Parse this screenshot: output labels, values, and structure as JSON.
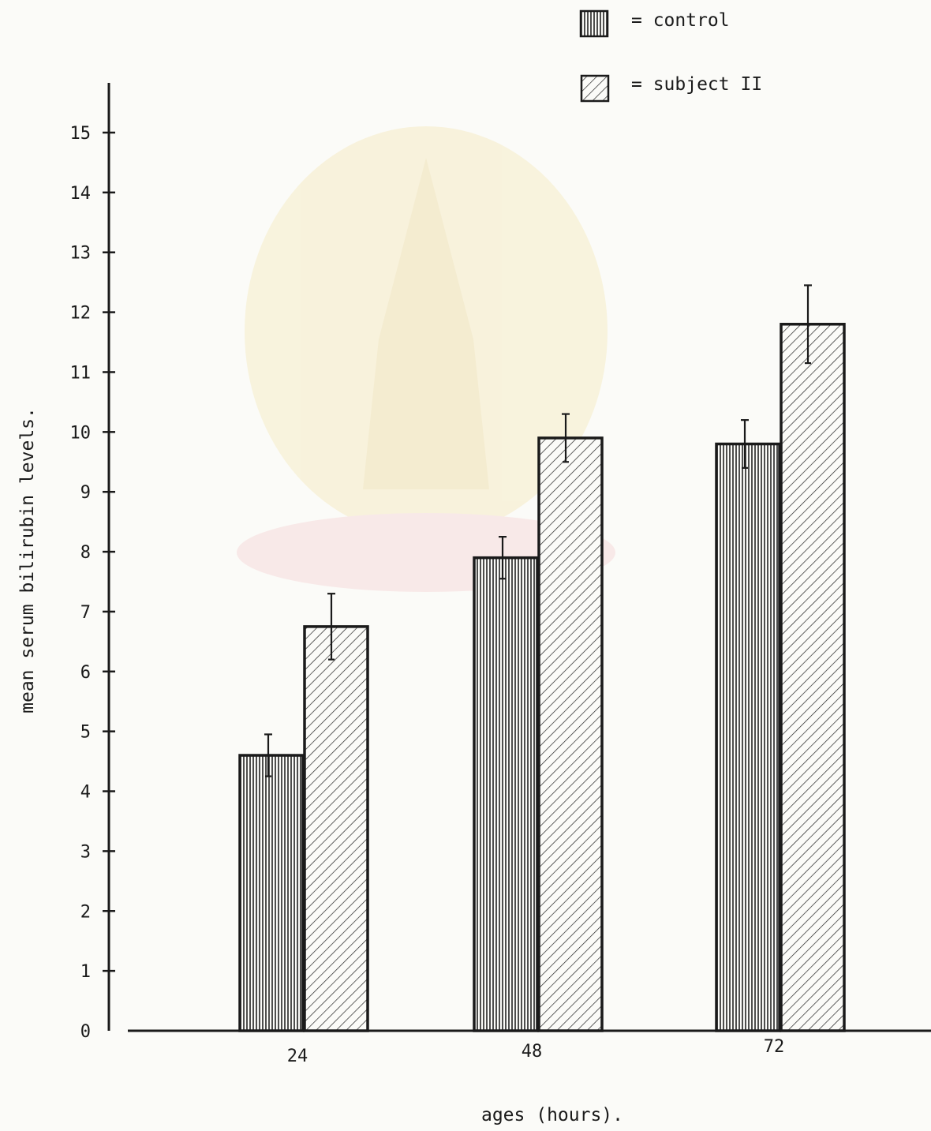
{
  "chart_data": {
    "type": "bar",
    "title": "",
    "xlabel": "ages (hours).",
    "ylabel": "mean serum bilirubin levels.",
    "categories": [
      "24",
      "48",
      "72"
    ],
    "series": [
      {
        "name": "control",
        "values": [
          4.6,
          7.9,
          9.8
        ],
        "error": [
          0.35,
          0.35,
          0.4
        ],
        "pattern": "vertical-lines"
      },
      {
        "name": "subject II",
        "values": [
          6.75,
          9.9,
          11.8
        ],
        "error": [
          0.55,
          0.4,
          0.65
        ],
        "pattern": "diagonal-hatch"
      }
    ],
    "ylim": [
      0,
      15
    ],
    "yticks": [
      0,
      1,
      2,
      3,
      4,
      5,
      6,
      7,
      8,
      9,
      10,
      11,
      12,
      13,
      14,
      15
    ],
    "grid": false,
    "legend": "top-right",
    "legend_entries": [
      {
        "symbol": "▥",
        "label": "= control"
      },
      {
        "symbol": "▨",
        "label": "= subject II"
      }
    ],
    "colors": {
      "ink": "#1a1a1a",
      "paper": "#fbfbf8",
      "watermark": "#f3e6b4"
    }
  }
}
